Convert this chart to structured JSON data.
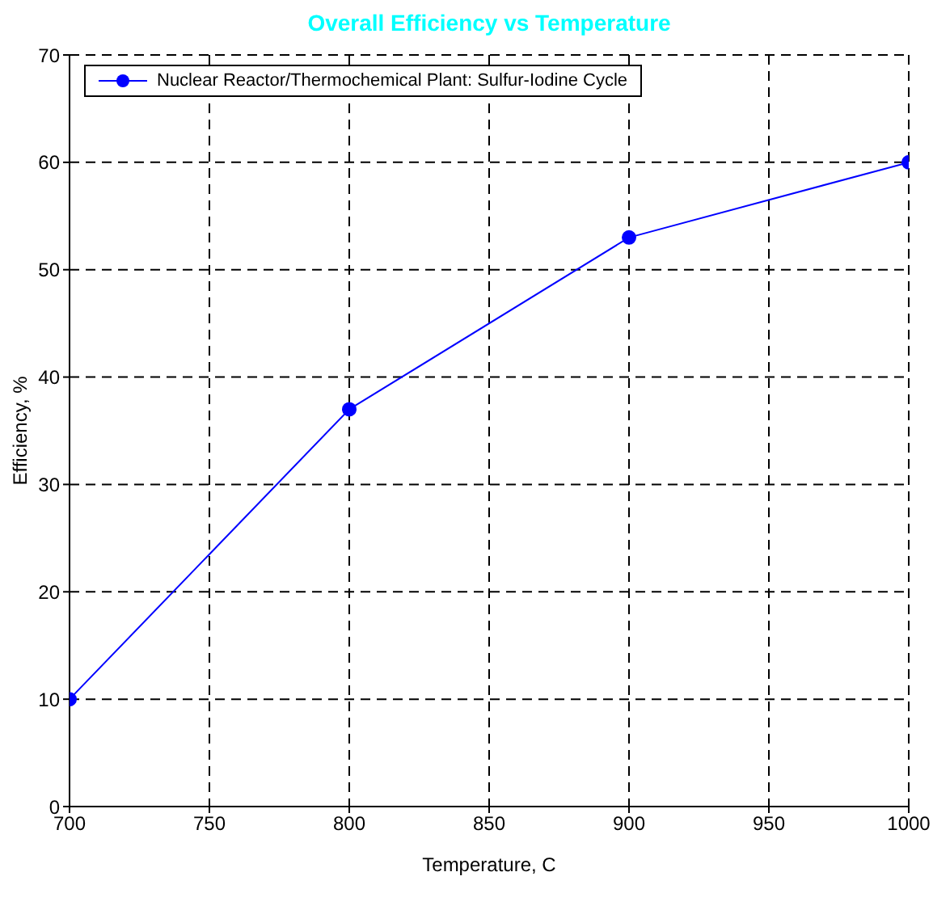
{
  "chart_data": {
    "type": "line",
    "title": "Overall Efficiency vs Temperature",
    "xlabel": "Temperature, C",
    "ylabel": "Efficiency, %",
    "x": [
      700,
      800,
      900,
      1000
    ],
    "series": [
      {
        "name": "Nuclear Reactor/Thermochemical Plant: Sulfur-Iodine Cycle",
        "color": "#0000ff",
        "values": [
          10,
          37,
          53,
          60
        ]
      }
    ],
    "xlim": [
      700,
      1000
    ],
    "xticks": [
      700,
      750,
      800,
      850,
      900,
      950,
      1000
    ],
    "ylim": [
      0,
      70
    ],
    "yticks": [
      0,
      10,
      20,
      30,
      40,
      50,
      60,
      70
    ],
    "grid": true,
    "legend": "top left",
    "marker": "circle",
    "line_style": "solid"
  }
}
